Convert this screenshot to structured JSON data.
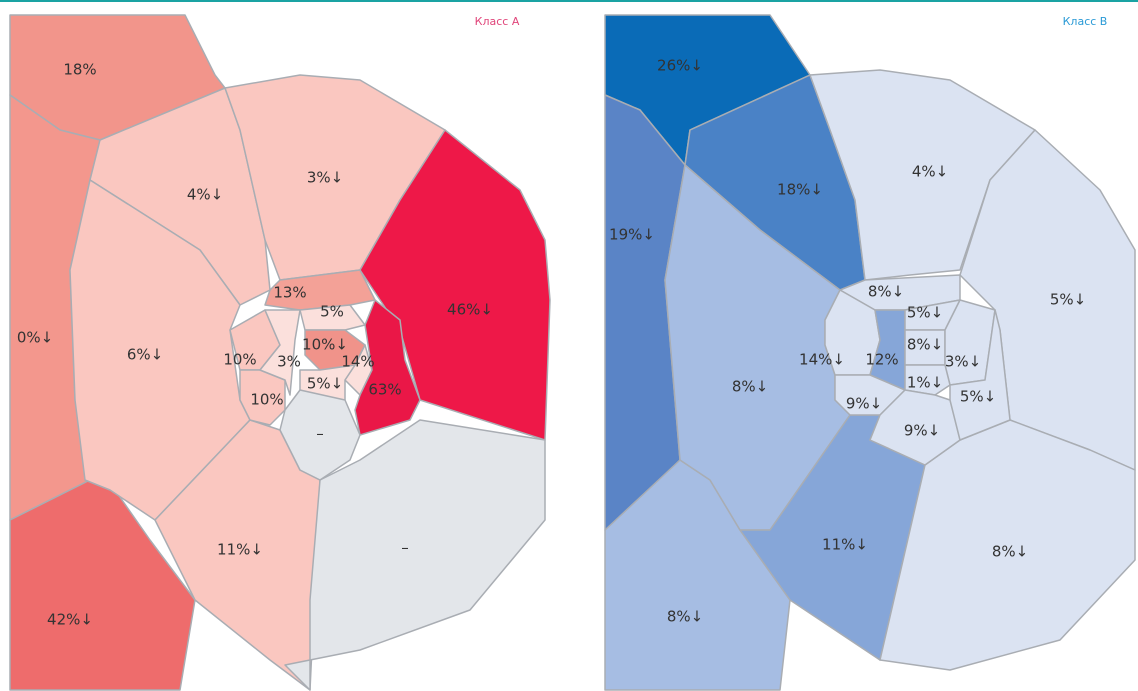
{
  "maps": [
    {
      "title": "Класс А",
      "title_color": "#e0457a",
      "regions": [
        {
          "label": "18%",
          "color": "#f2958b"
        },
        {
          "label": "0%↓",
          "color": "#f3978d"
        },
        {
          "label": "42%↓",
          "color": "#ee6c6c"
        },
        {
          "label": "4%↓",
          "color": "#fac7c0"
        },
        {
          "label": "3%↓",
          "color": "#fac7c0"
        },
        {
          "label": "46%↓",
          "color": "#ee1848"
        },
        {
          "label": "6%↓",
          "color": "#fac7c0"
        },
        {
          "label": "11%↓",
          "color": "#fac7c0"
        },
        {
          "label": "–",
          "color": "#e3e6ea"
        },
        {
          "label": "13%",
          "color": "#f3a197"
        },
        {
          "label": "10%",
          "color": "#fac7c0"
        },
        {
          "label": "10%",
          "color": "#fac7c0"
        },
        {
          "label": "3%",
          "color": "#fbe0dc"
        },
        {
          "label": "5%",
          "color": "#fbe0dc"
        },
        {
          "label": "10%↓",
          "color": "#f0938a"
        },
        {
          "label": "14%",
          "color": "#fbe0dc"
        },
        {
          "label": "5%↓",
          "color": "#fbe0dc"
        },
        {
          "label": "63%",
          "color": "#ea1747"
        },
        {
          "label": "–",
          "color": "#e3e6ea"
        }
      ]
    },
    {
      "title": "Класс В",
      "title_color": "#2a9ad6",
      "regions": [
        {
          "label": "26%↓",
          "color": "#0a6bb7"
        },
        {
          "label": "19%↓",
          "color": "#5a84c6"
        },
        {
          "label": "8%↓",
          "color": "#a6bde3"
        },
        {
          "label": "18%↓",
          "color": "#4a82c6"
        },
        {
          "label": "4%↓",
          "color": "#dbe3f2"
        },
        {
          "label": "5%↓",
          "color": "#dbe3f2"
        },
        {
          "label": "8%↓",
          "color": "#a6bde3"
        },
        {
          "label": "11%↓",
          "color": "#86a6d8"
        },
        {
          "label": "8%↓",
          "color": "#dbe3f2"
        },
        {
          "label": "8%↓",
          "color": "#dbe3f2"
        },
        {
          "label": "14%↓",
          "color": "#dbe3f2"
        },
        {
          "label": "12%",
          "color": "#86a6d8"
        },
        {
          "label": "5%↓",
          "color": "#dbe3f2"
        },
        {
          "label": "8%↓",
          "color": "#dbe3f2"
        },
        {
          "label": "3%↓",
          "color": "#dbe3f2"
        },
        {
          "label": "1%↓",
          "color": "#dbe3f2"
        },
        {
          "label": "9%↓",
          "color": "#dbe3f2"
        },
        {
          "label": "9%↓",
          "color": "#dbe3f2"
        },
        {
          "label": "5%↓",
          "color": "#dbe3f2"
        }
      ]
    }
  ]
}
